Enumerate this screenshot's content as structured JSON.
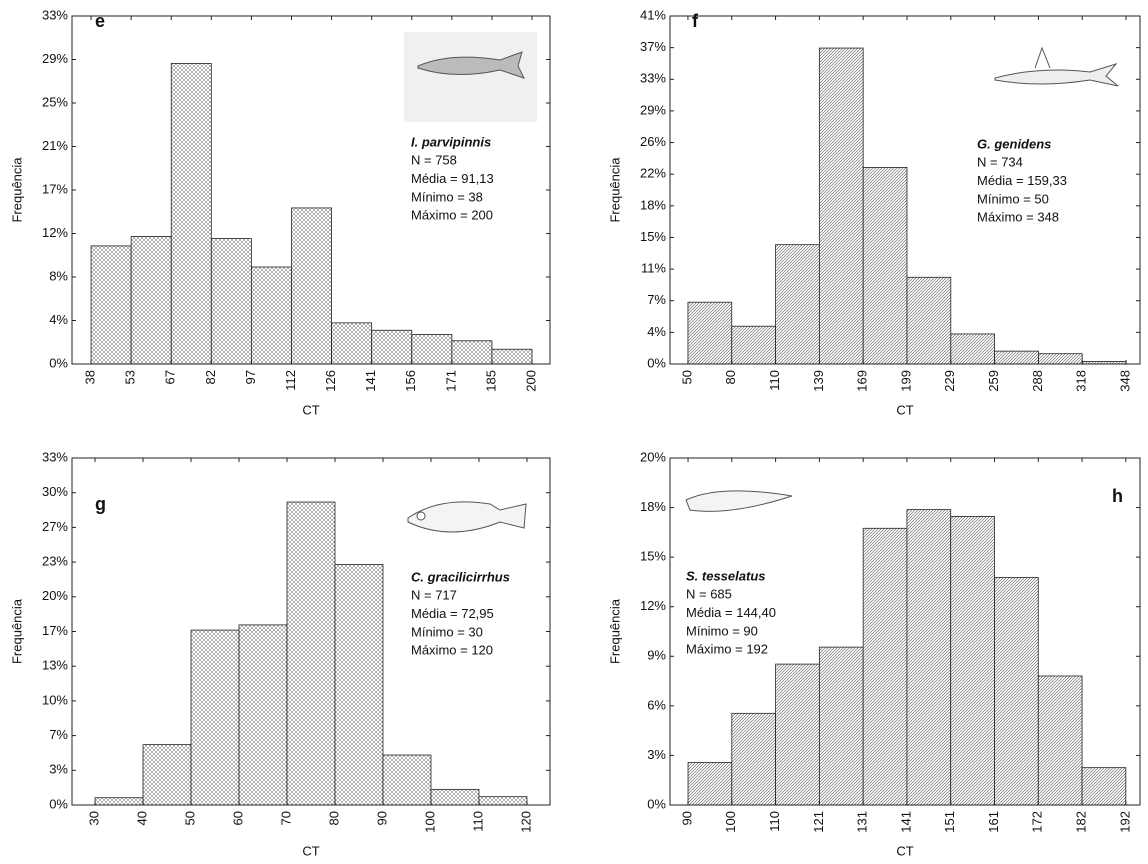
{
  "chart_data": [
    {
      "type": "histogram",
      "panel": "e",
      "annotations": [
        "I. parvipinnis",
        "N = 758",
        "Média = 91,13",
        "Mínimo = 38",
        "Máximo = 200"
      ],
      "xlabel": "CT",
      "ylabel": "Frequência",
      "color": "#555555",
      "bins": [
        38,
        52.727,
        67.455,
        82.182,
        96.909,
        111.636,
        126.364,
        141.091,
        155.818,
        170.545,
        185.273,
        200
      ],
      "values": [
        11.2,
        12.1,
        28.5,
        11.9,
        9.2,
        14.8,
        3.9,
        3.2,
        2.8,
        2.2,
        1.4
      ],
      "xlim": [
        31,
        206.6
      ],
      "ylim": [
        0,
        33
      ],
      "xticks": [
        38,
        {
          "value": 52.727,
          "label": "53"
        },
        {
          "value": 67.455,
          "label": "67"
        },
        {
          "value": 82.182,
          "label": "82"
        },
        {
          "value": 96.909,
          "label": "97"
        },
        {
          "value": 111.636,
          "label": "112"
        },
        {
          "value": 126.364,
          "label": "126"
        },
        {
          "value": 141.091,
          "label": "141"
        },
        {
          "value": 155.818,
          "label": "156"
        },
        {
          "value": 170.545,
          "label": "171"
        },
        {
          "value": 185.273,
          "label": "185"
        },
        200
      ],
      "yticks": [
        {
          "value": 0,
          "label": "0%"
        },
        {
          "value": 4.125,
          "label": "4%"
        },
        {
          "value": 8.25,
          "label": "8%"
        },
        {
          "value": 12.375,
          "label": "12%"
        },
        {
          "value": 16.5,
          "label": "17%"
        },
        {
          "value": 20.625,
          "label": "21%"
        },
        {
          "value": 24.75,
          "label": "25%"
        },
        {
          "value": 28.875,
          "label": "29%"
        },
        {
          "value": 33,
          "label": "33%"
        }
      ]
    },
    {
      "type": "histogram",
      "panel": "f",
      "annotations": [
        "G. genidens",
        "N = 734",
        "Média = 159,33",
        "Mínimo = 50",
        "Máximo = 348"
      ],
      "xlabel": "CT",
      "ylabel": "Frequência",
      "color": "#555555",
      "bins": [
        50,
        79.8,
        109.6,
        139.4,
        169.2,
        199,
        228.8,
        258.6,
        288.4,
        318.2,
        348
      ],
      "values": [
        7.2,
        4.4,
        13.9,
        36.8,
        22.9,
        10.1,
        3.5,
        1.5,
        1.2,
        0.3
      ],
      "xlim": [
        37.8,
        357.5
      ],
      "ylim": [
        0,
        40.535
      ],
      "xticks": [
        50,
        {
          "value": 79.8,
          "label": "80"
        },
        {
          "value": 109.6,
          "label": "110"
        },
        {
          "value": 139.4,
          "label": "139"
        },
        {
          "value": 169.2,
          "label": "169"
        },
        199,
        {
          "value": 228.8,
          "label": "229"
        },
        {
          "value": 258.6,
          "label": "259"
        },
        {
          "value": 288.4,
          "label": "288"
        },
        {
          "value": 318.2,
          "label": "318"
        },
        348
      ],
      "yticks": [
        {
          "value": 0,
          "label": "0%"
        },
        {
          "value": 3.685,
          "label": "4%"
        },
        {
          "value": 7.37,
          "label": "7%"
        },
        {
          "value": 11.055,
          "label": "11%"
        },
        {
          "value": 14.74,
          "label": "15%"
        },
        {
          "value": 18.425,
          "label": "18%"
        },
        {
          "value": 22.11,
          "label": "22%"
        },
        {
          "value": 25.795,
          "label": "26%"
        },
        {
          "value": 29.48,
          "label": "29%"
        },
        {
          "value": 33.165,
          "label": "33%"
        },
        {
          "value": 36.85,
          "label": "37%"
        },
        {
          "value": 40.535,
          "label": "41%"
        }
      ]
    },
    {
      "type": "histogram",
      "panel": "g",
      "annotations": [
        "C. gracilicirrhus",
        "N = 717",
        "Média = 72,95",
        "Mínimo = 30",
        "Máximo = 120"
      ],
      "xlabel": "CT",
      "ylabel": "Frequência",
      "color": "#555555",
      "bins": [
        30,
        40,
        50,
        60,
        70,
        80,
        90,
        100,
        110,
        120
      ],
      "values": [
        0.7,
        5.8,
        16.8,
        17.3,
        29.1,
        23.1,
        4.8,
        1.5,
        0.8
      ],
      "xlim": [
        25.2,
        124.8
      ],
      "ylim": [
        0,
        33.33
      ],
      "xticks": [
        30,
        40,
        50,
        60,
        70,
        80,
        90,
        100,
        110,
        120
      ],
      "yticks": [
        {
          "value": 0,
          "label": "0%"
        },
        {
          "value": 3.333,
          "label": "3%"
        },
        {
          "value": 6.666,
          "label": "7%"
        },
        {
          "value": 9.999,
          "label": "10%"
        },
        {
          "value": 13.332,
          "label": "13%"
        },
        {
          "value": 16.665,
          "label": "17%"
        },
        {
          "value": 19.998,
          "label": "20%"
        },
        {
          "value": 23.331,
          "label": "23%"
        },
        {
          "value": 26.664,
          "label": "27%"
        },
        {
          "value": 29.997,
          "label": "30%"
        },
        {
          "value": 33.33,
          "label": "33%"
        }
      ]
    },
    {
      "type": "histogram",
      "panel": "h",
      "annotations": [
        "S. tesselatus",
        "N = 685",
        "Média = 144,40",
        "Mínimo = 90",
        "Máximo = 192"
      ],
      "xlabel": "CT",
      "ylabel": "Frequência",
      "color": "#555555",
      "bins": [
        90,
        100.2,
        110.4,
        120.6,
        130.8,
        141,
        151.2,
        161.4,
        171.6,
        181.8,
        192
      ],
      "values": [
        2.5,
        5.4,
        8.3,
        9.3,
        16.3,
        17.4,
        17.0,
        13.4,
        7.6,
        2.2
      ],
      "xlim": [
        85.8,
        195.3
      ],
      "ylim": [
        0,
        20.44
      ],
      "xticks": [
        90,
        {
          "value": 100.2,
          "label": "100"
        },
        {
          "value": 110.4,
          "label": "110"
        },
        {
          "value": 120.6,
          "label": "121"
        },
        {
          "value": 130.8,
          "label": "131"
        },
        141,
        {
          "value": 151.2,
          "label": "151"
        },
        {
          "value": 161.4,
          "label": "161"
        },
        {
          "value": 171.6,
          "label": "172"
        },
        {
          "value": 181.8,
          "label": "182"
        },
        192
      ],
      "yticks": [
        {
          "value": 0,
          "label": "0%"
        },
        {
          "value": 2.92,
          "label": "3%"
        },
        {
          "value": 5.84,
          "label": "6%"
        },
        {
          "value": 8.76,
          "label": "9%"
        },
        {
          "value": 11.68,
          "label": "12%"
        },
        {
          "value": 14.6,
          "label": "15%"
        },
        {
          "value": 17.52,
          "label": "18%"
        },
        {
          "value": 20.44,
          "label": "20%"
        }
      ]
    }
  ]
}
